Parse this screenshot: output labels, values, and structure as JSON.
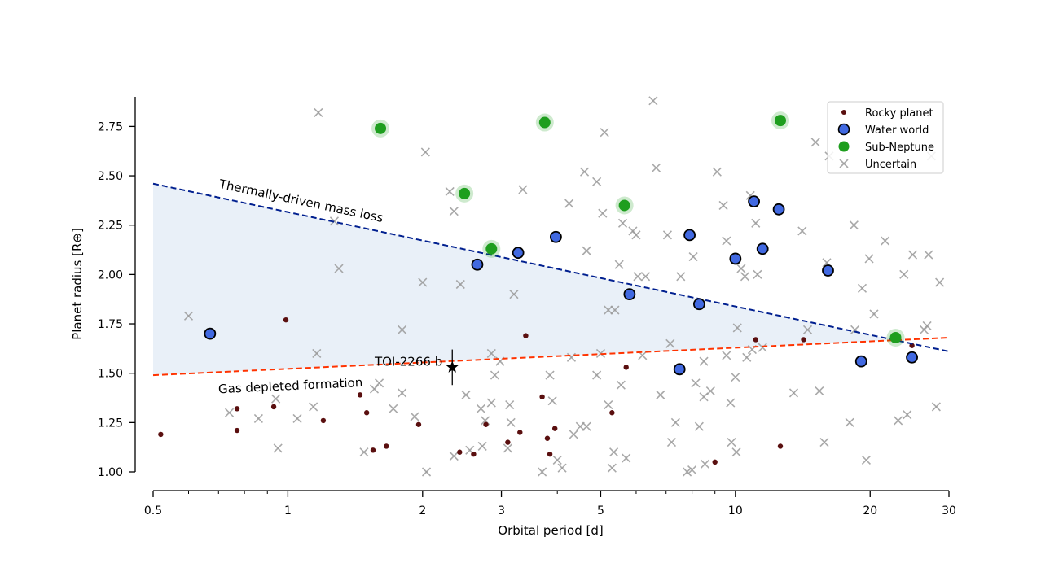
{
  "chart_data": {
    "type": "scatter",
    "title": "",
    "xlabel": "Orbital period [d]",
    "ylabel": "Planet radius [R⊕]",
    "xscale": "log",
    "xlim": [
      0.5,
      30
    ],
    "ylim": [
      1.0,
      2.9
    ],
    "xticks": [
      0.5,
      1,
      2,
      3,
      5,
      10,
      20,
      30
    ],
    "xtick_labels": [
      "0.5",
      "1",
      "2",
      "3",
      "5",
      "10",
      "20",
      "30"
    ],
    "yticks": [
      1.0,
      1.25,
      1.5,
      1.75,
      2.0,
      2.25,
      2.5,
      2.75
    ],
    "ytick_labels": [
      "1.00",
      "1.25",
      "1.50",
      "1.75",
      "2.00",
      "2.25",
      "2.50",
      "2.75"
    ],
    "grid": false,
    "legend_position": "top-right",
    "colors": {
      "rocky": "#5a0f0f",
      "water": "#4169e1",
      "subneptune": "#1e9e1e",
      "uncertain": "#9a9a9a",
      "mass_loss_line": "#001f8f",
      "gas_depleted_line": "#ff3300",
      "shade": "#dbe6f3"
    },
    "series": [
      {
        "name": "Rocky planet",
        "marker": "dot",
        "points": [
          [
            0.52,
            1.19
          ],
          [
            0.77,
            1.32
          ],
          [
            0.77,
            1.21
          ],
          [
            0.93,
            1.33
          ],
          [
            0.99,
            1.77
          ],
          [
            1.2,
            1.26
          ],
          [
            1.45,
            1.39
          ],
          [
            1.5,
            1.3
          ],
          [
            1.55,
            1.11
          ],
          [
            1.66,
            1.13
          ],
          [
            1.96,
            1.24
          ],
          [
            2.42,
            1.1
          ],
          [
            2.6,
            1.09
          ],
          [
            2.77,
            1.24
          ],
          [
            3.1,
            1.15
          ],
          [
            3.3,
            1.2
          ],
          [
            3.4,
            1.69
          ],
          [
            3.7,
            1.38
          ],
          [
            3.8,
            1.17
          ],
          [
            3.85,
            1.09
          ],
          [
            3.95,
            1.22
          ],
          [
            5.3,
            1.3
          ],
          [
            5.7,
            1.53
          ],
          [
            9.0,
            1.05
          ],
          [
            11.1,
            1.67
          ],
          [
            12.6,
            1.13
          ],
          [
            14.2,
            1.67
          ],
          [
            24.8,
            1.64
          ]
        ]
      },
      {
        "name": "Water world",
        "marker": "circle",
        "points": [
          [
            0.67,
            1.7
          ],
          [
            2.65,
            2.05
          ],
          [
            3.27,
            2.11
          ],
          [
            3.97,
            2.19
          ],
          [
            5.8,
            1.9
          ],
          [
            7.5,
            1.52
          ],
          [
            7.9,
            2.2
          ],
          [
            8.3,
            1.85
          ],
          [
            10.0,
            2.08
          ],
          [
            11.0,
            2.37
          ],
          [
            11.5,
            2.13
          ],
          [
            12.5,
            2.33
          ],
          [
            16.1,
            2.02
          ],
          [
            19.1,
            1.56
          ],
          [
            24.8,
            1.58
          ]
        ]
      },
      {
        "name": "Sub-Neptune",
        "marker": "circle-halo",
        "points": [
          [
            1.61,
            2.74
          ],
          [
            2.48,
            2.41
          ],
          [
            2.85,
            2.13
          ],
          [
            3.75,
            2.77
          ],
          [
            5.65,
            2.35
          ],
          [
            12.6,
            2.78
          ],
          [
            22.8,
            1.68
          ]
        ]
      },
      {
        "name": "Uncertain",
        "marker": "x",
        "points": [
          [
            0.6,
            1.79
          ],
          [
            0.74,
            1.3
          ],
          [
            0.86,
            1.27
          ],
          [
            0.95,
            1.12
          ],
          [
            0.94,
            1.37
          ],
          [
            1.05,
            1.27
          ],
          [
            1.14,
            1.33
          ],
          [
            1.16,
            1.6
          ],
          [
            1.17,
            2.82
          ],
          [
            1.27,
            2.27
          ],
          [
            1.3,
            2.03
          ],
          [
            1.48,
            1.1
          ],
          [
            1.56,
            1.42
          ],
          [
            1.6,
            1.45
          ],
          [
            1.72,
            1.32
          ],
          [
            1.8,
            1.72
          ],
          [
            1.8,
            1.4
          ],
          [
            1.92,
            1.28
          ],
          [
            2.0,
            1.96
          ],
          [
            2.03,
            2.62
          ],
          [
            2.04,
            1.0
          ],
          [
            2.3,
            2.42
          ],
          [
            2.35,
            2.32
          ],
          [
            2.35,
            1.08
          ],
          [
            2.43,
            1.95
          ],
          [
            2.5,
            1.39
          ],
          [
            2.55,
            1.11
          ],
          [
            2.7,
            1.32
          ],
          [
            2.72,
            1.13
          ],
          [
            2.76,
            1.26
          ],
          [
            2.85,
            1.6
          ],
          [
            2.85,
            1.35
          ],
          [
            2.9,
            1.49
          ],
          [
            2.98,
            1.56
          ],
          [
            3.1,
            1.12
          ],
          [
            3.13,
            1.34
          ],
          [
            3.15,
            1.25
          ],
          [
            3.2,
            1.9
          ],
          [
            3.35,
            2.43
          ],
          [
            3.7,
            1.0
          ],
          [
            3.85,
            1.49
          ],
          [
            3.9,
            1.36
          ],
          [
            4.0,
            1.06
          ],
          [
            4.1,
            1.02
          ],
          [
            4.25,
            2.36
          ],
          [
            4.3,
            1.58
          ],
          [
            4.35,
            1.19
          ],
          [
            4.5,
            1.23
          ],
          [
            4.6,
            2.52
          ],
          [
            4.65,
            1.23
          ],
          [
            4.65,
            2.12
          ],
          [
            4.9,
            2.47
          ],
          [
            4.9,
            1.49
          ],
          [
            5.0,
            1.6
          ],
          [
            5.05,
            2.31
          ],
          [
            5.1,
            2.72
          ],
          [
            5.2,
            1.34
          ],
          [
            5.2,
            1.82
          ],
          [
            5.3,
            1.02
          ],
          [
            5.35,
            1.1
          ],
          [
            5.38,
            1.82
          ],
          [
            5.5,
            2.05
          ],
          [
            5.55,
            1.44
          ],
          [
            5.6,
            2.26
          ],
          [
            5.7,
            1.07
          ],
          [
            5.9,
            2.22
          ],
          [
            6.0,
            2.2
          ],
          [
            6.05,
            1.99
          ],
          [
            6.2,
            1.59
          ],
          [
            6.3,
            1.99
          ],
          [
            6.55,
            2.88
          ],
          [
            6.65,
            2.54
          ],
          [
            6.8,
            1.39
          ],
          [
            7.05,
            2.2
          ],
          [
            7.15,
            1.65
          ],
          [
            7.2,
            1.15
          ],
          [
            7.35,
            1.25
          ],
          [
            7.55,
            1.99
          ],
          [
            7.8,
            1.0
          ],
          [
            8.0,
            1.01
          ],
          [
            8.05,
            2.09
          ],
          [
            8.15,
            1.45
          ],
          [
            8.3,
            1.23
          ],
          [
            8.5,
            1.38
          ],
          [
            8.5,
            1.56
          ],
          [
            8.55,
            1.04
          ],
          [
            8.8,
            1.41
          ],
          [
            9.1,
            2.52
          ],
          [
            9.4,
            2.35
          ],
          [
            9.55,
            2.17
          ],
          [
            9.55,
            1.59
          ],
          [
            9.75,
            1.35
          ],
          [
            9.8,
            1.15
          ],
          [
            10.0,
            1.48
          ],
          [
            10.1,
            1.73
          ],
          [
            10.05,
            1.1
          ],
          [
            10.3,
            2.03
          ],
          [
            10.5,
            1.99
          ],
          [
            10.6,
            1.58
          ],
          [
            10.8,
            2.4
          ],
          [
            10.9,
            1.62
          ],
          [
            11.1,
            2.26
          ],
          [
            11.2,
            2.0
          ],
          [
            11.5,
            1.63
          ],
          [
            13.5,
            1.4
          ],
          [
            14.1,
            2.22
          ],
          [
            14.5,
            1.72
          ],
          [
            15.1,
            2.67
          ],
          [
            15.4,
            1.41
          ],
          [
            15.8,
            1.15
          ],
          [
            16.0,
            2.06
          ],
          [
            16.2,
            2.6
          ],
          [
            18.0,
            1.25
          ],
          [
            18.4,
            2.25
          ],
          [
            18.5,
            1.72
          ],
          [
            19.2,
            1.93
          ],
          [
            19.6,
            1.06
          ],
          [
            19.9,
            2.08
          ],
          [
            20.4,
            1.8
          ],
          [
            21.6,
            2.17
          ],
          [
            23.1,
            1.26
          ],
          [
            23.8,
            2.0
          ],
          [
            24.2,
            1.29
          ],
          [
            24.9,
            2.1
          ],
          [
            26.4,
            1.72
          ],
          [
            26.8,
            1.74
          ],
          [
            27.0,
            2.1
          ],
          [
            27.4,
            2.6
          ],
          [
            28.1,
            1.33
          ],
          [
            28.6,
            1.96
          ]
        ]
      }
    ],
    "lines": [
      {
        "name": "Thermally-driven mass loss",
        "style": "dashed",
        "p1": [
          0.5,
          2.46
        ],
        "p2": [
          30,
          1.61
        ]
      },
      {
        "name": "Gas depleted formation",
        "style": "dashed",
        "p1": [
          0.5,
          1.49
        ],
        "p2": [
          30,
          1.68
        ]
      }
    ],
    "highlight": {
      "label": "TOI-2266 b",
      "x": 2.33,
      "y": 1.53,
      "yerr": 0.09
    }
  }
}
